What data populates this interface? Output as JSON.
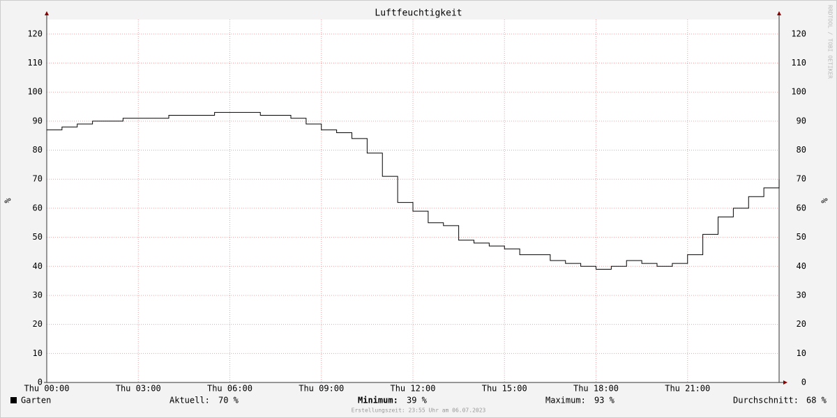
{
  "chart_data": {
    "type": "line",
    "title": "Luftfeuchtigkeit",
    "y_label": "%",
    "y2_label": "%",
    "watermark": "RRDTOOL / TOBI OETIKER",
    "x": [
      0,
      0.5,
      1,
      1.5,
      2,
      2.5,
      3,
      3.5,
      4,
      4.5,
      5,
      5.5,
      6,
      6.5,
      7,
      7.5,
      8,
      8.5,
      9,
      9.5,
      10,
      10.5,
      11,
      11.5,
      12,
      12.5,
      13,
      13.5,
      14,
      14.5,
      15,
      15.5,
      16,
      16.5,
      17,
      17.5,
      18,
      18.5,
      19,
      19.5,
      20,
      20.5,
      21,
      21.5,
      22,
      22.5,
      23,
      23.5,
      24
    ],
    "series": [
      {
        "name": "Garten",
        "color": "#000000",
        "values": [
          87,
          88,
          89,
          90,
          90,
          91,
          91,
          91,
          92,
          92,
          92,
          93,
          93,
          93,
          92,
          92,
          91,
          89,
          87,
          86,
          84,
          79,
          71,
          62,
          59,
          55,
          54,
          49,
          48,
          47,
          46,
          44,
          44,
          42,
          41,
          40,
          39,
          40,
          42,
          41,
          40,
          41,
          44,
          51,
          57,
          60,
          64,
          67,
          70
        ]
      }
    ],
    "xlim": [
      0,
      24
    ],
    "xticks": [
      {
        "value": 0,
        "label": "Thu 00:00"
      },
      {
        "value": 3,
        "label": "Thu 03:00"
      },
      {
        "value": 6,
        "label": "Thu 06:00"
      },
      {
        "value": 9,
        "label": "Thu 09:00"
      },
      {
        "value": 12,
        "label": "Thu 12:00"
      },
      {
        "value": 15,
        "label": "Thu 15:00"
      },
      {
        "value": 18,
        "label": "Thu 18:00"
      },
      {
        "value": 21,
        "label": "Thu 21:00"
      }
    ],
    "ylim": [
      0,
      125
    ],
    "yticks": [
      0,
      10,
      20,
      30,
      40,
      50,
      60,
      70,
      80,
      90,
      100,
      110,
      120
    ],
    "grid": true,
    "stats": [
      {
        "label": "Aktuell:",
        "value": 70,
        "value_label": "70 %"
      },
      {
        "label": "Minimum:",
        "value": 39,
        "value_label": "39 %"
      },
      {
        "label": "Maximum:",
        "value": 93,
        "value_label": "93 %"
      },
      {
        "label": "Durchschnitt:",
        "value": 68,
        "value_label": "68 %"
      }
    ],
    "footer": "Erstellungszeit: 23:55 Uhr am 06.07.2023"
  }
}
